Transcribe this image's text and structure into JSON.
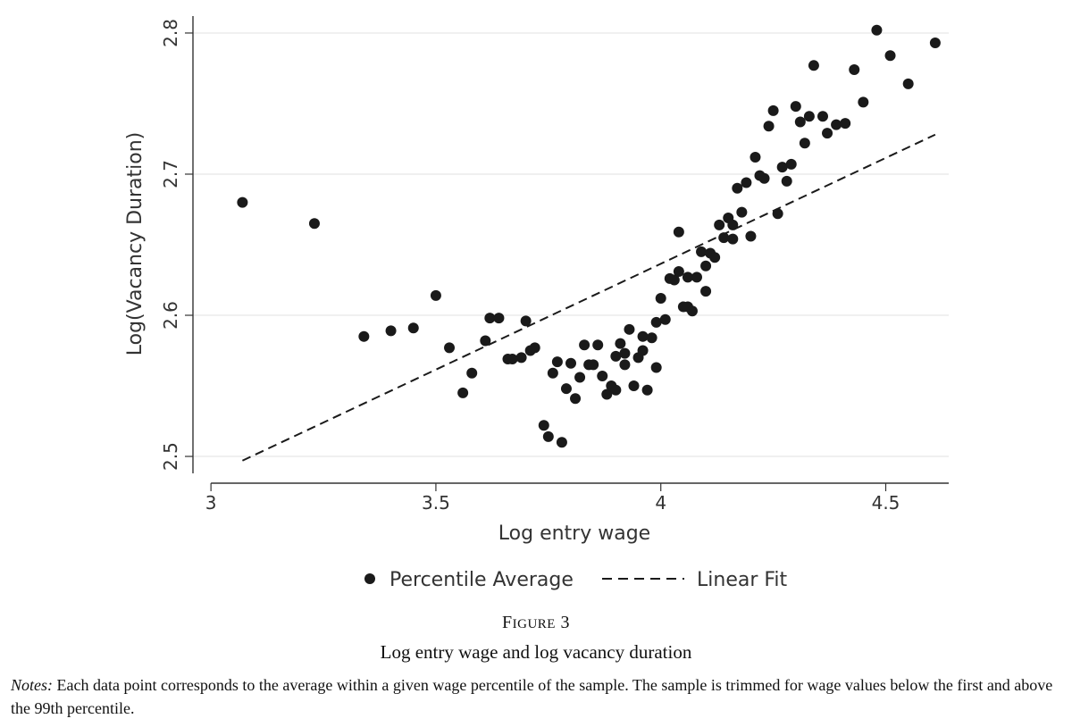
{
  "chart_data": {
    "type": "scatter",
    "xlabel": "Log entry wage",
    "ylabel": "Log(Vacancy Duration)",
    "xlim": [
      2.96,
      4.64
    ],
    "ylim": [
      2.488,
      2.812
    ],
    "xticks": [
      3,
      3.5,
      4,
      4.5
    ],
    "xtick_labels": [
      "3",
      "3.5",
      "4",
      "4.5"
    ],
    "yticks": [
      2.5,
      2.6,
      2.7,
      2.8
    ],
    "ytick_labels": [
      "2.5",
      "2.6",
      "2.7",
      "2.8"
    ],
    "grid": "horizontal",
    "legend_position": "bottom",
    "series": [
      {
        "name": "Percentile Average",
        "kind": "points",
        "color": "#1a1a1a",
        "points": [
          [
            3.07,
            2.68
          ],
          [
            3.23,
            2.665
          ],
          [
            3.34,
            2.585
          ],
          [
            3.4,
            2.589
          ],
          [
            3.45,
            2.591
          ],
          [
            3.5,
            2.614
          ],
          [
            3.53,
            2.577
          ],
          [
            3.56,
            2.545
          ],
          [
            3.58,
            2.559
          ],
          [
            3.61,
            2.582
          ],
          [
            3.62,
            2.598
          ],
          [
            3.64,
            2.598
          ],
          [
            3.66,
            2.569
          ],
          [
            3.67,
            2.569
          ],
          [
            3.69,
            2.57
          ],
          [
            3.7,
            2.596
          ],
          [
            3.71,
            2.575
          ],
          [
            3.72,
            2.577
          ],
          [
            3.74,
            2.522
          ],
          [
            3.75,
            2.514
          ],
          [
            3.76,
            2.559
          ],
          [
            3.77,
            2.567
          ],
          [
            3.78,
            2.51
          ],
          [
            3.79,
            2.548
          ],
          [
            3.8,
            2.566
          ],
          [
            3.81,
            2.541
          ],
          [
            3.82,
            2.556
          ],
          [
            3.83,
            2.579
          ],
          [
            3.84,
            2.565
          ],
          [
            3.85,
            2.565
          ],
          [
            3.86,
            2.579
          ],
          [
            3.87,
            2.557
          ],
          [
            3.88,
            2.544
          ],
          [
            3.89,
            2.55
          ],
          [
            3.9,
            2.547
          ],
          [
            3.9,
            2.571
          ],
          [
            3.91,
            2.58
          ],
          [
            3.92,
            2.573
          ],
          [
            3.92,
            2.565
          ],
          [
            3.93,
            2.59
          ],
          [
            3.94,
            2.55
          ],
          [
            3.95,
            2.57
          ],
          [
            3.96,
            2.575
          ],
          [
            3.96,
            2.585
          ],
          [
            3.97,
            2.547
          ],
          [
            3.98,
            2.584
          ],
          [
            3.99,
            2.563
          ],
          [
            3.99,
            2.595
          ],
          [
            4.0,
            2.612
          ],
          [
            4.01,
            2.597
          ],
          [
            4.02,
            2.626
          ],
          [
            4.03,
            2.625
          ],
          [
            4.04,
            2.659
          ],
          [
            4.04,
            2.631
          ],
          [
            4.05,
            2.606
          ],
          [
            4.06,
            2.606
          ],
          [
            4.06,
            2.627
          ],
          [
            4.07,
            2.603
          ],
          [
            4.08,
            2.627
          ],
          [
            4.09,
            2.645
          ],
          [
            4.1,
            2.617
          ],
          [
            4.1,
            2.635
          ],
          [
            4.11,
            2.644
          ],
          [
            4.12,
            2.641
          ],
          [
            4.13,
            2.664
          ],
          [
            4.14,
            2.655
          ],
          [
            4.15,
            2.669
          ],
          [
            4.16,
            2.664
          ],
          [
            4.16,
            2.654
          ],
          [
            4.17,
            2.69
          ],
          [
            4.18,
            2.673
          ],
          [
            4.19,
            2.694
          ],
          [
            4.2,
            2.656
          ],
          [
            4.21,
            2.712
          ],
          [
            4.22,
            2.699
          ],
          [
            4.23,
            2.697
          ],
          [
            4.24,
            2.734
          ],
          [
            4.25,
            2.745
          ],
          [
            4.26,
            2.672
          ],
          [
            4.27,
            2.705
          ],
          [
            4.28,
            2.695
          ],
          [
            4.29,
            2.707
          ],
          [
            4.3,
            2.748
          ],
          [
            4.31,
            2.737
          ],
          [
            4.32,
            2.722
          ],
          [
            4.33,
            2.741
          ],
          [
            4.34,
            2.777
          ],
          [
            4.36,
            2.741
          ],
          [
            4.37,
            2.729
          ],
          [
            4.39,
            2.735
          ],
          [
            4.41,
            2.736
          ],
          [
            4.43,
            2.774
          ],
          [
            4.45,
            2.751
          ],
          [
            4.48,
            2.802
          ],
          [
            4.51,
            2.784
          ],
          [
            4.55,
            2.764
          ],
          [
            4.61,
            2.793
          ]
        ]
      },
      {
        "name": "Linear Fit",
        "kind": "dashed-line",
        "color": "#1a1a1a",
        "points": [
          [
            3.07,
            2.497
          ],
          [
            4.61,
            2.728
          ]
        ]
      }
    ]
  },
  "caption": {
    "figure_label_first": "F",
    "figure_label_rest": "IGURE",
    "figure_number": "3",
    "title": "Log entry wage and log vacancy duration",
    "notes_label": "Notes:",
    "notes_text": " Each data point corresponds to the average within a given wage percentile of the sample. The sample is trimmed for wage values below the first and above the 99th percentile."
  }
}
